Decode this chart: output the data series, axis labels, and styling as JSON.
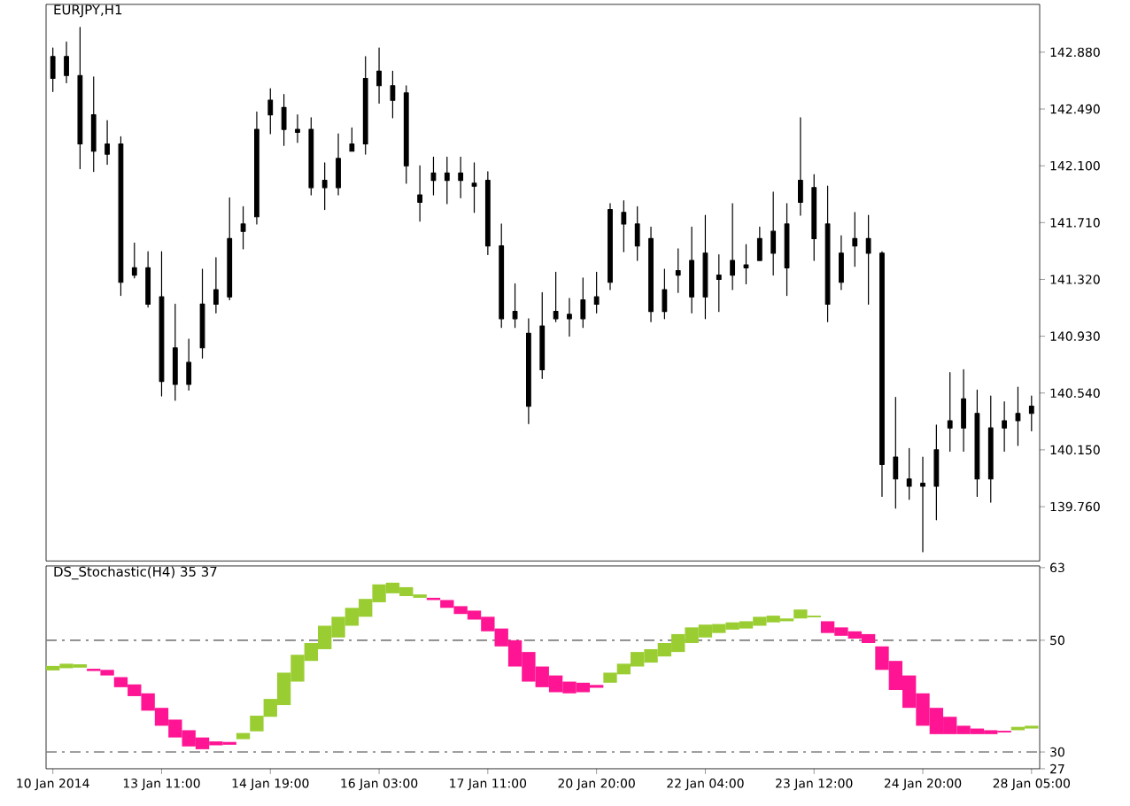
{
  "chart_data": [
    {
      "type": "candlestick",
      "title": "EURJPY,H1",
      "color": "#000000",
      "tick_labels": "y",
      "categories": [
        null,
        null,
        null,
        null,
        null,
        null,
        null,
        null,
        null,
        null,
        null,
        null,
        null,
        null,
        null,
        null,
        null,
        null,
        null,
        null,
        null,
        null,
        null,
        null,
        null,
        null,
        null,
        null,
        null,
        null,
        null,
        null,
        null,
        null,
        null,
        null,
        null,
        null,
        null,
        null,
        null,
        null,
        null,
        null,
        null,
        null,
        null,
        null,
        null,
        null,
        null,
        null,
        null,
        null,
        null,
        null,
        null,
        null,
        null,
        null,
        null,
        null,
        null,
        null,
        null,
        null,
        null,
        null,
        null,
        null,
        null,
        null,
        null
      ],
      "ohlc": [
        [
          142.7,
          142.91,
          142.61,
          142.85
        ],
        [
          142.85,
          142.95,
          142.67,
          142.72
        ],
        [
          142.72,
          143.05,
          142.08,
          142.25
        ],
        [
          142.45,
          142.71,
          142.06,
          142.2
        ],
        [
          142.18,
          142.41,
          142.11,
          142.25
        ],
        [
          142.25,
          142.3,
          141.21,
          141.3
        ],
        [
          141.4,
          141.57,
          141.33,
          141.35
        ],
        [
          141.4,
          141.51,
          141.13,
          141.15
        ],
        [
          141.2,
          141.51,
          140.52,
          140.62
        ],
        [
          140.85,
          141.15,
          140.49,
          140.6
        ],
        [
          140.6,
          140.91,
          140.56,
          140.75
        ],
        [
          140.85,
          141.39,
          140.78,
          141.15
        ],
        [
          141.25,
          141.47,
          141.09,
          141.15
        ],
        [
          141.2,
          141.88,
          141.18,
          141.6
        ],
        [
          141.7,
          141.82,
          141.53,
          141.65
        ],
        [
          141.75,
          142.47,
          141.7,
          142.35
        ],
        [
          142.45,
          142.63,
          142.32,
          142.55
        ],
        [
          142.5,
          142.59,
          142.24,
          142.35
        ],
        [
          142.35,
          142.45,
          142.26,
          142.33
        ],
        [
          142.35,
          142.43,
          141.9,
          141.95
        ],
        [
          141.95,
          142.12,
          141.8,
          142.0
        ],
        [
          141.95,
          142.32,
          141.9,
          142.15
        ],
        [
          142.2,
          142.36,
          142.2,
          142.25
        ],
        [
          142.25,
          142.85,
          142.18,
          142.7
        ],
        [
          142.75,
          142.91,
          142.53,
          142.65
        ],
        [
          142.65,
          142.75,
          142.43,
          142.55
        ],
        [
          142.6,
          142.65,
          141.98,
          142.1
        ],
        [
          141.9,
          142.1,
          141.72,
          141.85
        ],
        [
          142.0,
          142.16,
          141.9,
          142.05
        ],
        [
          142.05,
          142.16,
          141.84,
          142.0
        ],
        [
          142.0,
          142.16,
          141.88,
          142.05
        ],
        [
          141.98,
          142.12,
          141.78,
          141.96
        ],
        [
          142.0,
          142.06,
          141.49,
          141.55
        ],
        [
          141.55,
          141.7,
          140.99,
          141.05
        ],
        [
          141.05,
          141.29,
          140.99,
          141.1
        ],
        [
          140.95,
          141.05,
          140.33,
          140.45
        ],
        [
          140.7,
          141.23,
          140.64,
          141.0
        ],
        [
          141.05,
          141.37,
          141.03,
          141.1
        ],
        [
          141.05,
          141.19,
          140.93,
          141.08
        ],
        [
          141.05,
          141.33,
          140.99,
          141.18
        ],
        [
          141.2,
          141.37,
          141.09,
          141.15
        ],
        [
          141.3,
          141.84,
          141.25,
          141.8
        ],
        [
          141.78,
          141.86,
          141.51,
          141.7
        ],
        [
          141.7,
          141.82,
          141.45,
          141.55
        ],
        [
          141.6,
          141.68,
          141.03,
          141.1
        ],
        [
          141.1,
          141.39,
          141.05,
          141.25
        ],
        [
          141.35,
          141.53,
          141.23,
          141.38
        ],
        [
          141.45,
          141.68,
          141.09,
          141.2
        ],
        [
          141.2,
          141.76,
          141.05,
          141.5
        ],
        [
          141.35,
          141.49,
          141.1,
          141.32
        ],
        [
          141.45,
          141.84,
          141.25,
          141.35
        ],
        [
          141.4,
          141.56,
          141.29,
          141.42
        ],
        [
          141.45,
          141.68,
          141.45,
          141.6
        ],
        [
          141.65,
          141.92,
          141.35,
          141.5
        ],
        [
          141.4,
          141.84,
          141.21,
          141.7
        ],
        [
          141.85,
          142.43,
          141.76,
          142.0
        ],
        [
          141.95,
          142.04,
          141.45,
          141.6
        ],
        [
          141.7,
          141.96,
          141.03,
          141.15
        ],
        [
          141.3,
          141.62,
          141.25,
          141.5
        ],
        [
          141.55,
          141.78,
          141.41,
          141.6
        ],
        [
          141.5,
          141.76,
          141.15,
          141.6
        ],
        [
          141.5,
          141.51,
          139.83,
          140.05
        ],
        [
          140.1,
          140.51,
          139.75,
          139.95
        ],
        [
          139.9,
          140.16,
          139.81,
          139.95
        ],
        [
          139.9,
          140.1,
          139.45,
          139.92
        ],
        [
          139.9,
          140.32,
          139.67,
          140.15
        ],
        [
          140.35,
          140.68,
          140.14,
          140.3
        ],
        [
          140.3,
          140.7,
          140.14,
          140.5
        ],
        [
          140.4,
          140.56,
          139.83,
          139.95
        ],
        [
          139.95,
          140.52,
          139.79,
          140.3
        ],
        [
          140.3,
          140.48,
          140.14,
          140.35
        ],
        [
          140.35,
          140.58,
          140.18,
          140.4
        ],
        [
          140.4,
          140.52,
          140.28,
          140.45
        ]
      ],
      "ylim": [
        139.387,
        143.208
      ],
      "yticks": [
        {
          "value": 142.88,
          "label": "142.880"
        },
        {
          "value": 142.49,
          "label": "142.490"
        },
        {
          "value": 142.1,
          "label": "142.100"
        },
        {
          "value": 141.71,
          "label": "141.710"
        },
        {
          "value": 141.32,
          "label": "141.320"
        },
        {
          "value": 140.93,
          "label": "140.930"
        },
        {
          "value": 140.54,
          "label": "140.540"
        },
        {
          "value": 140.15,
          "label": "140.150"
        },
        {
          "value": 139.76,
          "label": "139.760"
        }
      ]
    },
    {
      "type": "bar",
      "title": "DS_Stochastic(H4) 35 37",
      "categories": [
        "10 Jan 2014",
        null,
        null,
        null,
        null,
        null,
        null,
        null,
        "13 Jan 11:00",
        null,
        null,
        null,
        null,
        null,
        null,
        null,
        "14 Jan 19:00",
        null,
        null,
        null,
        null,
        null,
        null,
        null,
        "16 Jan 03:00",
        null,
        null,
        null,
        null,
        null,
        null,
        null,
        "17 Jan 11:00",
        null,
        null,
        null,
        null,
        null,
        null,
        null,
        "20 Jan 20:00",
        null,
        null,
        null,
        null,
        null,
        null,
        null,
        "22 Jan 04:00",
        null,
        null,
        null,
        null,
        null,
        null,
        null,
        "23 Jan 12:00",
        null,
        null,
        null,
        null,
        null,
        null,
        null,
        "24 Jan 20:00",
        null,
        null,
        null,
        null,
        null,
        null,
        null,
        "28 Jan 05:00"
      ],
      "base": [
        44.6,
        45.0,
        45.1,
        44.5,
        43.7,
        41.6,
        40.0,
        37.4,
        34.7,
        32.6,
        31.0,
        30.5,
        31.2,
        31.3,
        32.3,
        33.7,
        36.3,
        38.4,
        42.6,
        46.3,
        48.4,
        50.5,
        52.6,
        54.2,
        56.8,
        58.4,
        57.9,
        57.6,
        57.2,
        55.8,
        54.7,
        53.7,
        51.6,
        48.9,
        45.3,
        42.6,
        41.6,
        40.7,
        40.5,
        40.7,
        41.5,
        42.4,
        43.9,
        45.3,
        46.0,
        47.1,
        47.9,
        49.5,
        50.5,
        51.3,
        51.9,
        52.1,
        52.6,
        53.2,
        53.4,
        53.9,
        54.1,
        51.3,
        50.8,
        50.3,
        49.5,
        44.7,
        41.1,
        37.9,
        34.7,
        33.2,
        33.2,
        33.2,
        33.2,
        33.2,
        33.5,
        33.9,
        34.2
      ],
      "values": [
        0.8,
        0.8,
        0.6,
        0.4,
        1.0,
        1.8,
        2.1,
        3.1,
        3.2,
        3.2,
        2.9,
        2.1,
        0.7,
        0.5,
        1.1,
        2.8,
        3.2,
        5.8,
        4.8,
        3.2,
        4.2,
        3.7,
        3.2,
        3.2,
        3.2,
        1.9,
        1.6,
        0.6,
        0.4,
        1.4,
        1.4,
        1.6,
        2.6,
        3.2,
        4.7,
        5.3,
        3.7,
        3.0,
        2.1,
        1.7,
        0.5,
        1.8,
        1.9,
        2.6,
        2.4,
        2.4,
        3.2,
        2.8,
        2.3,
        1.6,
        1.3,
        1.3,
        1.6,
        1.2,
        0.5,
        1.6,
        0.3,
        2.1,
        1.5,
        1.3,
        1.6,
        4.2,
        5.2,
        5.8,
        5.8,
        4.7,
        3.1,
        1.5,
        1.0,
        0.7,
        0.3,
        0.6,
        0.5
      ],
      "colors": [
        "#9acd32",
        "#9acd32",
        "#9acd32",
        "#ff1493",
        "#ff1493",
        "#ff1493",
        "#ff1493",
        "#ff1493",
        "#ff1493",
        "#ff1493",
        "#ff1493",
        "#ff1493",
        "#ff1493",
        "#ff1493",
        "#9acd32",
        "#9acd32",
        "#9acd32",
        "#9acd32",
        "#9acd32",
        "#9acd32",
        "#9acd32",
        "#9acd32",
        "#9acd32",
        "#9acd32",
        "#9acd32",
        "#9acd32",
        "#9acd32",
        "#9acd32",
        "#ff1493",
        "#ff1493",
        "#ff1493",
        "#ff1493",
        "#ff1493",
        "#ff1493",
        "#ff1493",
        "#ff1493",
        "#ff1493",
        "#ff1493",
        "#ff1493",
        "#ff1493",
        "#ff1493",
        "#9acd32",
        "#9acd32",
        "#9acd32",
        "#9acd32",
        "#9acd32",
        "#9acd32",
        "#9acd32",
        "#9acd32",
        "#9acd32",
        "#9acd32",
        "#9acd32",
        "#9acd32",
        "#9acd32",
        "#9acd32",
        "#9acd32",
        "#9acd32",
        "#ff1493",
        "#ff1493",
        "#ff1493",
        "#ff1493",
        "#ff1493",
        "#ff1493",
        "#ff1493",
        "#ff1493",
        "#ff1493",
        "#ff1493",
        "#ff1493",
        "#ff1493",
        "#ff1493",
        "#ff1493",
        "#9acd32",
        "#9acd32"
      ],
      "ylim": [
        27,
        63.3
      ],
      "yticks": [
        63,
        50,
        30,
        27
      ],
      "ref_lines": [
        {
          "axis": "y",
          "value": 50,
          "color": "#808080",
          "line_style": "dashed"
        },
        {
          "axis": "y",
          "value": 30,
          "color": "#808080",
          "line_style": "dashed"
        }
      ]
    }
  ]
}
